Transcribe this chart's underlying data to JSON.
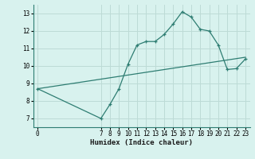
{
  "xlabel": "Humidex (Indice chaleur)",
  "ylabel": "",
  "background_color": "#d8f2ee",
  "grid_color": "#bddbd6",
  "line_color": "#2e7d72",
  "curve_x": [
    0,
    7,
    8,
    9,
    10,
    11,
    12,
    13,
    14,
    15,
    16,
    17,
    18,
    19,
    20,
    21,
    22,
    23
  ],
  "curve_y": [
    8.7,
    7.0,
    7.8,
    8.7,
    10.1,
    11.2,
    11.4,
    11.4,
    11.8,
    12.4,
    13.1,
    12.8,
    12.1,
    12.0,
    11.2,
    9.8,
    9.85,
    10.4
  ],
  "trend_x": [
    0,
    23
  ],
  "trend_y": [
    8.7,
    10.5
  ],
  "xlim": [
    -0.5,
    23.5
  ],
  "ylim": [
    6.5,
    13.5
  ],
  "xticks": [
    0,
    7,
    8,
    9,
    10,
    11,
    12,
    13,
    14,
    15,
    16,
    17,
    18,
    19,
    20,
    21,
    22,
    23
  ],
  "yticks": [
    7,
    8,
    9,
    10,
    11,
    12,
    13
  ],
  "tick_fontsize": 5.5,
  "xlabel_fontsize": 6.5
}
